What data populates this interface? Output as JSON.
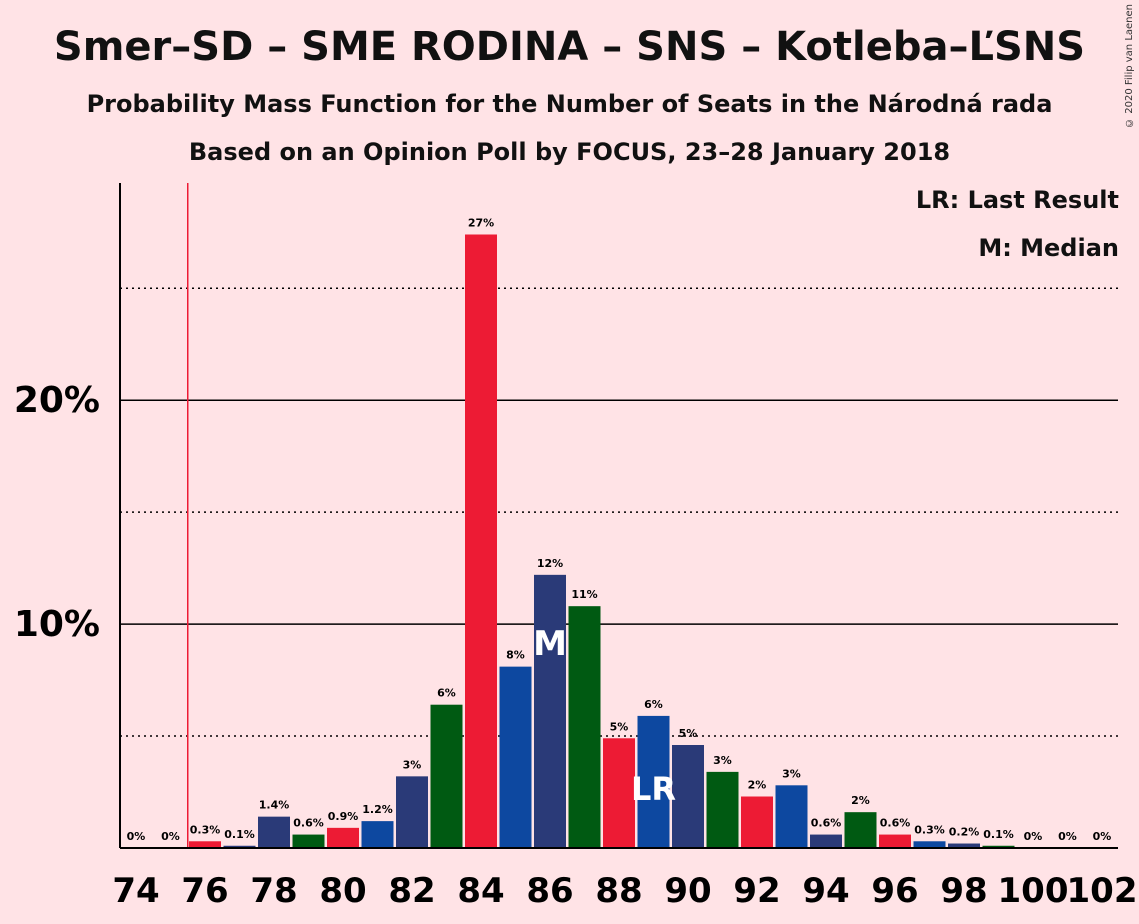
{
  "chart_data": {
    "type": "bar",
    "title": "Smer–SD – SME RODINA – SNS – Kotleba–ĽSNS",
    "subtitle": "Probability Mass Function for the Number of Seats in the Národná rada",
    "subtitle2": "Based on an Opinion Poll by FOCUS, 23–28 January 2018",
    "copyright": "© 2020 Filip van Laenen",
    "legend": [
      "LR: Last Result",
      "M: Median"
    ],
    "legend_placement": "top-right",
    "x": [
      74,
      75,
      76,
      77,
      78,
      79,
      80,
      81,
      82,
      83,
      84,
      85,
      86,
      87,
      88,
      89,
      90,
      91,
      92,
      93,
      94,
      95,
      96,
      97,
      98,
      99,
      100,
      101,
      102
    ],
    "values": [
      0,
      0,
      0.3,
      0.1,
      1.4,
      0.6,
      0.9,
      1.2,
      3.2,
      6.4,
      27.4,
      8.1,
      12.2,
      10.8,
      4.9,
      5.9,
      4.6,
      3.4,
      2.3,
      2.8,
      0.6,
      1.6,
      0.6,
      0.3,
      0.2,
      0.1,
      0,
      0,
      0
    ],
    "labels": [
      "0%",
      "0%",
      "0.3%",
      "0.1%",
      "1.4%",
      "0.6%",
      "0.9%",
      "1.2%",
      "3%",
      "6%",
      "27%",
      "8%",
      "12%",
      "11%",
      "5%",
      "6%",
      "5%",
      "3%",
      "2%",
      "3%",
      "0.6%",
      "2%",
      "0.6%",
      "0.3%",
      "0.2%",
      "0.1%",
      "0%",
      "0%",
      "0%"
    ],
    "bar_colors": [
      "#ED1B34",
      "#2A3A78",
      "#ED1B34",
      "#2A3A78",
      "#2A3A78",
      "#005A12",
      "#ED1B34",
      "#0D48A0",
      "#2A3A78",
      "#005A12",
      "#ED1B34",
      "#0D48A0",
      "#2A3A78",
      "#005A12",
      "#ED1B34",
      "#0D48A0",
      "#2A3A78",
      "#005A12",
      "#ED1B34",
      "#0D48A0",
      "#2A3A78",
      "#005A12",
      "#ED1B34",
      "#0D48A0",
      "#2A3A78",
      "#005A12",
      "#ED1B34",
      "#0D48A0",
      "#2A3A78"
    ],
    "x_tick_labels": [
      "74",
      "76",
      "78",
      "80",
      "82",
      "84",
      "86",
      "88",
      "90",
      "92",
      "94",
      "96",
      "98",
      "100",
      "102"
    ],
    "y_tick_labels": [
      {
        "value": 10,
        "label": "10%"
      },
      {
        "value": 20,
        "label": "20%"
      }
    ],
    "ylim": [
      0,
      29.7
    ],
    "grid_major": [
      10,
      20
    ],
    "grid_minor": [
      5,
      15,
      25
    ],
    "last_result": 75.5,
    "last_result_bar": {
      "x": 89,
      "label": "LR"
    },
    "median": {
      "x": 86,
      "label": "M"
    },
    "colors": {
      "background": "#FFE3E6",
      "lr_line": "#ED1B34",
      "axis": "#000000"
    }
  }
}
